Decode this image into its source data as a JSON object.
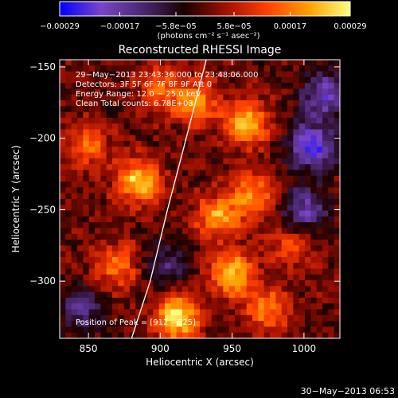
{
  "chart_data": {
    "type": "heatmap",
    "title": "Reconstructed RHESSI Image",
    "xlabel": "Heliocentric X (arcsec)",
    "ylabel": "Heliocentric Y (arcsec)",
    "xlim": [
      830,
      1025
    ],
    "ylim": [
      -340,
      -145
    ],
    "x_ticks": [
      850,
      900,
      950,
      1000
    ],
    "x_tick_labels": [
      "850",
      "900",
      "950",
      "1000"
    ],
    "y_ticks": [
      -150,
      -200,
      -250,
      -300
    ],
    "y_tick_labels": [
      "−150",
      "−200",
      "−250",
      "−300"
    ],
    "colorbar": {
      "range": [
        -0.00029,
        0.00029
      ],
      "tick_values": [
        -0.00029,
        -0.00017,
        -5.8e-05,
        5.8e-05,
        0.00017,
        0.00029
      ],
      "tick_labels": [
        "−0.00029",
        "−0.00017",
        "−5.8e−05",
        "5.8e−05",
        "0.00017",
        "0.00029"
      ],
      "unit_label": "(photons cm⁻² s⁻¹ asec⁻²)",
      "colors": [
        "#0000ff",
        "#7a44c8",
        "#4a2870",
        "#1a0000",
        "#a01000",
        "#ff4000",
        "#ffa000",
        "#ffff80"
      ]
    },
    "annotations": [
      "29−May−2013 23:43:36.000 to 23:48:06.000",
      "Detectors: 3F 5F 6F 7F 8F 9F  Att 0",
      "Energy Range: 12.0 − 25.0 keV",
      "Clean     Total counts: 6.78E+03"
    ],
    "peak_label": "Position of Peak = [912 −325]",
    "limb_curve": [
      [
        880,
        -340
      ],
      [
        893,
        -300
      ],
      [
        905,
        -250
      ],
      [
        918,
        -200
      ],
      [
        932,
        -145
      ]
    ],
    "sources": [
      {
        "x": 912,
        "y": -325,
        "value": 0.00029
      },
      {
        "x": 885,
        "y": -230,
        "value": 0.00025
      },
      {
        "x": 960,
        "y": -190,
        "value": 0.00023
      },
      {
        "x": 950,
        "y": -295,
        "value": 0.00024
      },
      {
        "x": 940,
        "y": -255,
        "value": 0.0002
      },
      {
        "x": 925,
        "y": -175,
        "value": 0.00018
      },
      {
        "x": 965,
        "y": -240,
        "value": 0.00019
      },
      {
        "x": 870,
        "y": -290,
        "value": 0.00016
      },
      {
        "x": 848,
        "y": -205,
        "value": 0.00015
      },
      {
        "x": 975,
        "y": -320,
        "value": 0.00017
      },
      {
        "x": 900,
        "y": -165,
        "value": 0.00014
      },
      {
        "x": 990,
        "y": -275,
        "value": 0.00012
      },
      {
        "x": 1005,
        "y": -205,
        "value": -0.00025
      },
      {
        "x": 1015,
        "y": -170,
        "value": -0.0002
      },
      {
        "x": 1000,
        "y": -250,
        "value": -0.00018
      },
      {
        "x": 845,
        "y": -320,
        "value": -0.00014
      },
      {
        "x": 905,
        "y": -290,
        "value": -0.00012
      }
    ]
  },
  "footer": "30−May−2013 06:53"
}
